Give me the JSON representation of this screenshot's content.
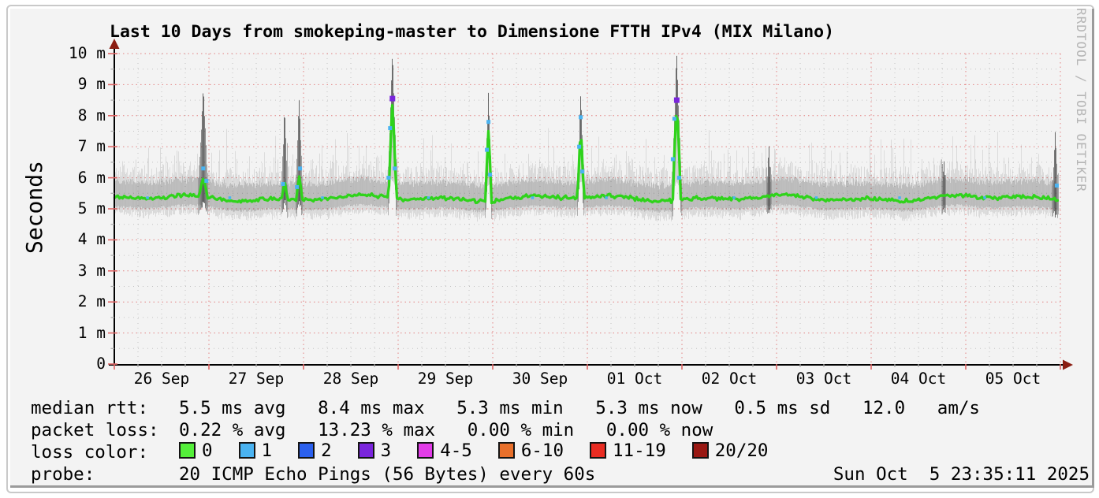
{
  "window": {
    "bg": "#ffffff",
    "frame_border": "#c9c9c9",
    "canvas_bg": "#f3f3f3",
    "canvas_bevel": "#9b9b9b"
  },
  "watermark": "RRDTOOL / TOBI OETIKER",
  "chart_data": {
    "type": "line",
    "subtype": "smokeping-latency-smoke",
    "title": "Last 10 Days from smokeping-master to Dimensione FTTH IPv4 (MIX Milano)",
    "ylabel": "Seconds",
    "xlabel": "",
    "unit": "milliseconds shown with m suffix",
    "ylim_ms": [
      0,
      10.25
    ],
    "x_range_days": 10,
    "grid": {
      "major_color": "#e06666",
      "minor_color": "#aaaaaa"
    },
    "axis_arrow_color": "#8b1d12",
    "median_color": "#2fd31b",
    "smoke_color": "#222222",
    "y_ticks": [
      {
        "v": 0,
        "label": "0"
      },
      {
        "v": 1,
        "label": "1 m"
      },
      {
        "v": 2,
        "label": "2 m"
      },
      {
        "v": 3,
        "label": "3 m"
      },
      {
        "v": 4,
        "label": "4 m"
      },
      {
        "v": 5,
        "label": "5 m"
      },
      {
        "v": 6,
        "label": "6 m"
      },
      {
        "v": 7,
        "label": "7 m"
      },
      {
        "v": 8,
        "label": "8 m"
      },
      {
        "v": 9,
        "label": "9 m"
      },
      {
        "v": 10,
        "label": "10 m"
      }
    ],
    "x_ticks": [
      {
        "day": 0,
        "label": "26 Sep"
      },
      {
        "day": 1,
        "label": "27 Sep"
      },
      {
        "day": 2,
        "label": "28 Sep"
      },
      {
        "day": 3,
        "label": "29 Sep"
      },
      {
        "day": 4,
        "label": "30 Sep"
      },
      {
        "day": 5,
        "label": "01 Oct"
      },
      {
        "day": 6,
        "label": "02 Oct"
      },
      {
        "day": 7,
        "label": "03 Oct"
      },
      {
        "day": 8,
        "label": "04 Oct"
      },
      {
        "day": 9,
        "label": "05 Oct"
      }
    ],
    "baseline": {
      "median_ms": 5.35,
      "smoke_lo_ms": 4.9,
      "smoke_hi_ms": 6.05,
      "wisp_max_ms": 7.4
    },
    "spikes": [
      {
        "t_days": 0.94,
        "width_days": 0.075,
        "smoke_peak_ms": 9.05,
        "median_peak_ms": 6.0,
        "loss_dots": [
          {
            "dx": 0,
            "ms": 6.3,
            "c": "1"
          },
          {
            "dx": 4,
            "ms": 5.9,
            "c": "1"
          }
        ]
      },
      {
        "t_days": 1.8,
        "width_days": 0.05,
        "smoke_peak_ms": 8.3,
        "median_peak_ms": 5.9,
        "loss_dots": [
          {
            "dx": -2,
            "ms": 5.8,
            "c": "1"
          }
        ]
      },
      {
        "t_days": 1.955,
        "width_days": 0.055,
        "smoke_peak_ms": 8.7,
        "median_peak_ms": 6.05,
        "loss_dots": [
          {
            "dx": 1,
            "ms": 6.3,
            "c": "1"
          },
          {
            "dx": -3,
            "ms": 5.7,
            "c": "1"
          }
        ]
      },
      {
        "t_days": 2.94,
        "width_days": 0.07,
        "smoke_peak_ms": 10.25,
        "median_peak_ms": 8.5,
        "loss_dots": [
          {
            "dx": 0,
            "ms": 8.55,
            "c": "3"
          },
          {
            "dx": -3,
            "ms": 7.6,
            "c": "1"
          },
          {
            "dx": 3,
            "ms": 6.3,
            "c": "1"
          },
          {
            "dx": -5,
            "ms": 6.0,
            "c": "1"
          }
        ]
      },
      {
        "t_days": 3.955,
        "width_days": 0.055,
        "smoke_peak_ms": 8.7,
        "median_peak_ms": 7.55,
        "loss_dots": [
          {
            "dx": 0,
            "ms": 7.8,
            "c": "1"
          },
          {
            "dx": -2,
            "ms": 6.9,
            "c": "1"
          },
          {
            "dx": 2,
            "ms": 6.1,
            "c": "1"
          }
        ]
      },
      {
        "t_days": 4.93,
        "width_days": 0.055,
        "smoke_peak_ms": 8.85,
        "median_peak_ms": 7.7,
        "loss_dots": [
          {
            "dx": 0,
            "ms": 7.95,
            "c": "1"
          },
          {
            "dx": -2,
            "ms": 7.0,
            "c": "1"
          },
          {
            "dx": 2,
            "ms": 6.2,
            "c": "1"
          }
        ]
      },
      {
        "t_days": 5.945,
        "width_days": 0.075,
        "smoke_peak_ms": 10.15,
        "median_peak_ms": 8.45,
        "loss_dots": [
          {
            "dx": 0,
            "ms": 8.5,
            "c": "3"
          },
          {
            "dx": -3,
            "ms": 7.9,
            "c": "1"
          },
          {
            "dx": -5,
            "ms": 6.6,
            "c": "1"
          },
          {
            "dx": 3,
            "ms": 6.0,
            "c": "1"
          }
        ]
      },
      {
        "t_days": 6.92,
        "width_days": 0.04,
        "smoke_peak_ms": 6.95,
        "median_peak_ms": 5.5,
        "loss_dots": []
      },
      {
        "t_days": 8.77,
        "width_days": 0.035,
        "smoke_peak_ms": 6.6,
        "median_peak_ms": 5.45,
        "loss_dots": []
      },
      {
        "t_days": 9.945,
        "width_days": 0.05,
        "smoke_peak_ms": 7.45,
        "median_peak_ms": 5.6,
        "loss_dots": [
          {
            "dx": 2,
            "ms": 5.75,
            "c": "1"
          }
        ]
      }
    ],
    "baseline_loss_dots_days": [
      0.35,
      1.22,
      2.2,
      3.32,
      4.42,
      5.2,
      6.55,
      7.42,
      8.3,
      9.2
    ],
    "stats": {
      "median_rtt_ms": {
        "avg": 5.5,
        "max": 8.4,
        "min": 5.3,
        "now": 5.3,
        "sd": 0.5,
        "am_per_s": 12.0
      },
      "packet_loss_pct": {
        "avg": 0.22,
        "max": 13.23,
        "min": 0.0,
        "now": 0.0
      }
    }
  },
  "legend": {
    "rows": [
      {
        "label": "median rtt:",
        "stats": [
          "5.5 ms avg",
          "8.4 ms max",
          "5.3 ms min",
          "5.3 ms now",
          "0.5 ms sd",
          "12.0   am/s"
        ]
      },
      {
        "label": "packet loss:",
        "stats": [
          "0.22 % avg",
          "13.23 % max",
          "0.00 % min",
          "0.00 % now"
        ]
      },
      {
        "label": "loss color:",
        "items": [
          {
            "label": "0",
            "color": "#54ef3a"
          },
          {
            "label": "1",
            "color": "#4ab3f1"
          },
          {
            "label": "2",
            "color": "#2b60ee"
          },
          {
            "label": "3",
            "color": "#7a25dc"
          },
          {
            "label": "4-5",
            "color": "#e23ce8"
          },
          {
            "label": "6-10",
            "color": "#e9702b"
          },
          {
            "label": "11-19",
            "color": "#e92c22"
          },
          {
            "label": "20/20",
            "color": "#991813"
          }
        ]
      },
      {
        "label": "probe:",
        "value": "20 ICMP Echo Pings (56 Bytes) every 60s"
      }
    ],
    "timestamp": "Sun Oct  5 23:35:11 2025"
  }
}
